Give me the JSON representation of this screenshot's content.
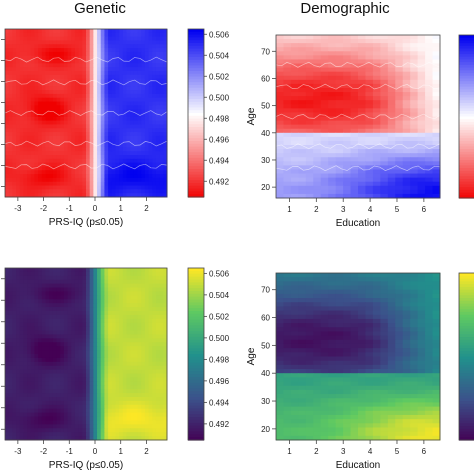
{
  "titles": {
    "genetic": "Genetic",
    "demographic": "Demographic"
  },
  "chart_data": [
    {
      "type": "heatmap",
      "panel": "genetic-bwr",
      "title": "Genetic",
      "xlabel": "PRS-IQ (p≤0.05)",
      "ylabel": "",
      "xlim": [
        -3.5,
        2.8
      ],
      "ylim": [
        0,
        1
      ],
      "xticks": [
        "-3",
        "-2",
        "-1",
        "0",
        "1",
        "2"
      ],
      "colormap": "red-white-blue",
      "colorbar_range": [
        0.4905,
        0.5065
      ],
      "colorbar_ticks": [
        "0.492",
        "0.494",
        "0.496",
        "0.498",
        "0.500",
        "0.502",
        "0.504",
        "0.506"
      ],
      "contours": true
    },
    {
      "type": "heatmap",
      "panel": "demographic-bwr",
      "title": "Demographic",
      "xlabel": "Education",
      "ylabel": "Age",
      "xlim": [
        0.5,
        6.6
      ],
      "ylim": [
        16,
        76
      ],
      "xticks": [
        "1",
        "2",
        "3",
        "4",
        "5",
        "6"
      ],
      "yticks": [
        "20",
        "30",
        "40",
        "50",
        "60",
        "70"
      ],
      "colormap": "red-white-blue",
      "contours": true
    },
    {
      "type": "heatmap",
      "panel": "genetic-viridis",
      "xlabel": "PRS-IQ (p≤0.05)",
      "ylabel": "",
      "xlim": [
        -3.5,
        2.8
      ],
      "ylim": [
        0,
        1
      ],
      "xticks": [
        "-3",
        "-2",
        "-1",
        "0",
        "1",
        "2"
      ],
      "colormap": "viridis",
      "colorbar_range": [
        0.4905,
        0.5065
      ],
      "colorbar_ticks": [
        "0.492",
        "0.494",
        "0.496",
        "0.498",
        "0.500",
        "0.502",
        "0.504",
        "0.506"
      ],
      "contours": false
    },
    {
      "type": "heatmap",
      "panel": "demographic-viridis",
      "xlabel": "Education",
      "ylabel": "Age",
      "xlim": [
        0.5,
        6.6
      ],
      "ylim": [
        16,
        76
      ],
      "xticks": [
        "1",
        "2",
        "3",
        "4",
        "5",
        "6"
      ],
      "yticks": [
        "20",
        "30",
        "40",
        "50",
        "60",
        "70"
      ],
      "colormap": "viridis",
      "contours": false
    }
  ]
}
